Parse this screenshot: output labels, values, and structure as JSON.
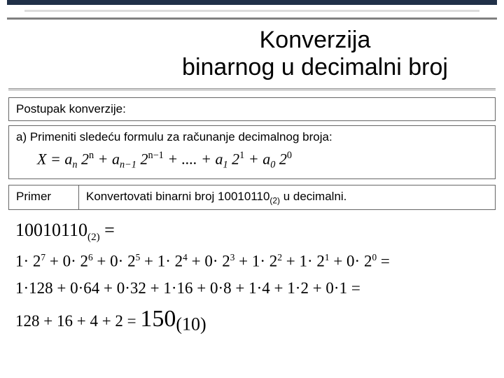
{
  "title_line1": "Konverzija",
  "title_line2": "binarnog u decimalni broj",
  "postupak_label": "Postupak konverzije:",
  "step_a": "a)  Primeniti sledeću formulu za računanje decimalnog broja:",
  "formula": {
    "lhs": "X",
    "eq": " = ",
    "t1a": "a",
    "t1s": "n",
    "t1b": "2",
    "t1p": "n",
    "plus1": " + ",
    "t2a": "a",
    "t2s": "n−1",
    "t2b": "2",
    "t2p": "n−1",
    "plus2": " + .... + ",
    "t3a": "a",
    "t3s": "1",
    "t3b": "2",
    "t3p": "1",
    "plus3": " + ",
    "t4a": "a",
    "t4s": "0",
    "t4b": "2",
    "t4p": "0"
  },
  "primer_label": "Primer",
  "primer_text_pre": "Konvertovati binarni broj 10010110",
  "primer_text_sub": "(2)",
  "primer_text_post": " u decimalni.",
  "math": {
    "l1_a": "10010110",
    "l1_sub": "(2)",
    "l1_eq": " =",
    "l2": {
      "c": [
        "1",
        "0",
        "0",
        "1",
        "0",
        "1",
        "1",
        "0"
      ],
      "p": [
        "7",
        "6",
        "5",
        "4",
        "3",
        "2",
        "1",
        "0"
      ]
    },
    "l3": {
      "vals": [
        "1·128",
        "0·64",
        "0·32",
        "1·16",
        "0·8",
        "1·4",
        "1·2",
        "0·1"
      ]
    },
    "l4_pre": "128 + 16 + 4 + 2 = ",
    "l4_res": "150",
    "l4_sub": "(10)"
  },
  "colors": {
    "border": "#666666",
    "top_dark": "#203048",
    "top_gray": "#808080"
  }
}
